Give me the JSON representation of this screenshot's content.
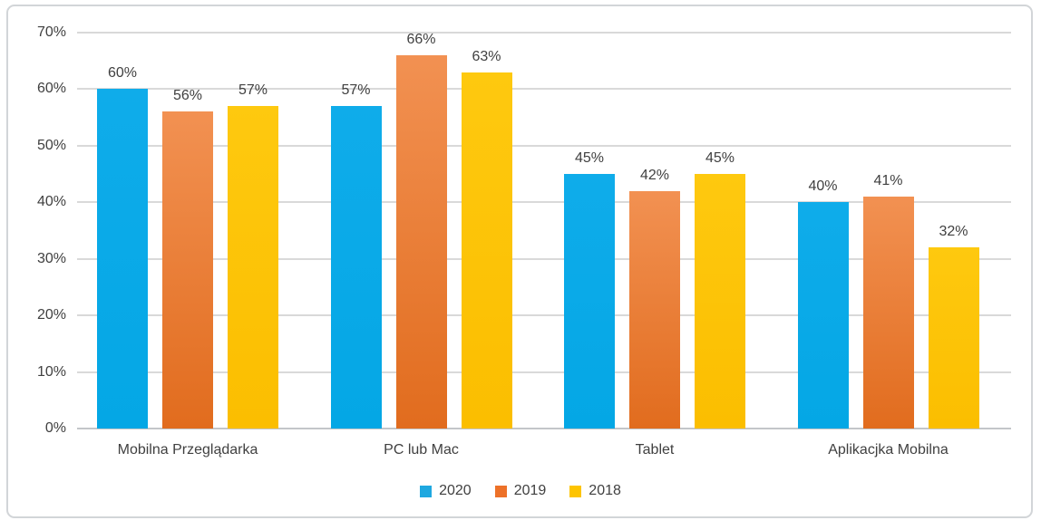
{
  "chart_data": {
    "type": "bar",
    "title": "",
    "xlabel": "",
    "ylabel": "",
    "categories": [
      "Mobilna Przeglądarka",
      "PC lub Mac",
      "Tablet",
      "Aplikacjka Mobilna"
    ],
    "series": [
      {
        "name": "2020",
        "values": [
          60,
          57,
          45,
          40
        ],
        "color": "#1FA8E0",
        "color_top": "#0FACEA",
        "color_bottom": "#04A7E5"
      },
      {
        "name": "2019",
        "values": [
          56,
          66,
          42,
          41
        ],
        "color": "#ED7128",
        "color_top": "#F29152",
        "color_bottom": "#E16C1E"
      },
      {
        "name": "2018",
        "values": [
          57,
          63,
          45,
          32
        ],
        "color": "#FDC400",
        "color_top": "#FEC90F",
        "color_bottom": "#FBBE00"
      }
    ],
    "ylim": [
      0,
      70
    ],
    "ytick_step": 10,
    "ytick_suffix": "%",
    "value_label_suffix": "%",
    "grid": true,
    "legend_position": "bottom"
  },
  "colors": {
    "text": "#404040",
    "gridline": "#D9D9D9",
    "axis_line": "#C3C6C9",
    "frame_border": "#D2D5D8",
    "background": "#FFFFFF"
  }
}
